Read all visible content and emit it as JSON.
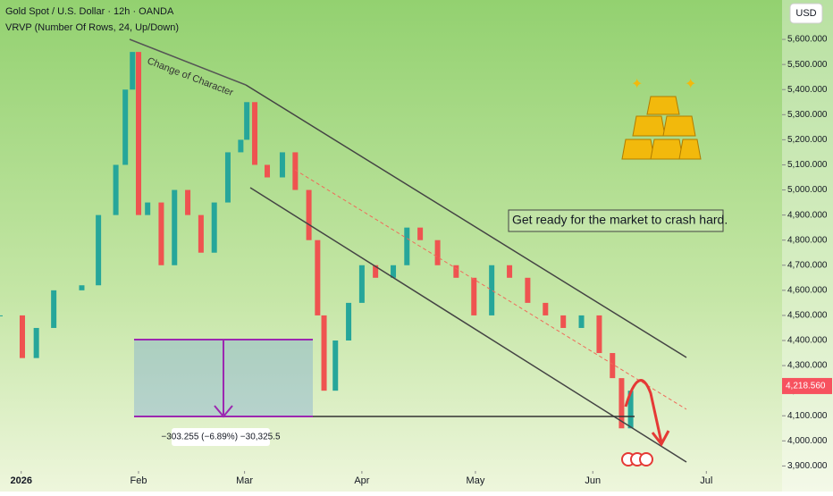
{
  "chart_data": {
    "type": "candlestick",
    "title": "Gold Spot / U.S. Dollar · 12h · OANDA",
    "subtitle": "VRVP (Number Of Rows, 24, Up/Down)",
    "currency": "USD",
    "annotations": [
      "Change of Character",
      "Get ready for the market to crash hard.",
      "−303.255 (−6.89%) −30,325.5"
    ],
    "x": [
      -4.6,
      1.3,
      5,
      9.6,
      17,
      21.4,
      26,
      28.5,
      30.4,
      32,
      34.4,
      38,
      41.5,
      45,
      48.5,
      52,
      55.6,
      59,
      60.6,
      62.7,
      66,
      70,
      73.4,
      77,
      79.3,
      81,
      84,
      87.5,
      91,
      94.6,
      99.3,
      102.9,
      106.4,
      111,
      115.9,
      120.6,
      125.3,
      130,
      134.8,
      139.5,
      144.2,
      149,
      153.7,
      157.2,
      159.6,
      162
    ],
    "values": [
      4500,
      4330,
      4450,
      4600,
      4620,
      4900,
      5100,
      5400,
      5550,
      4900,
      4950,
      4700,
      5000,
      4900,
      4750,
      4950,
      5150,
      5200,
      5350,
      5100,
      5050,
      5150,
      5000,
      4800,
      4500,
      4200,
      4400,
      4550,
      4700,
      4650,
      4700,
      4850,
      4800,
      4700,
      4650,
      4500,
      4700,
      4650,
      4550,
      4500,
      4450,
      4500,
      4350,
      4250,
      4050,
      4200
    ],
    "up_color": "#26a69a",
    "down_color": "#ef5350",
    "xlim": [
      -4.6,
      202
    ],
    "xticks": [
      {
        "value": 1,
        "label": "2026"
      },
      {
        "value": 32,
        "label": "Feb"
      },
      {
        "value": 60,
        "label": "Mar"
      },
      {
        "value": 91,
        "label": "Apr"
      },
      {
        "value": 121,
        "label": "May"
      },
      {
        "value": 152,
        "label": "Jun"
      },
      {
        "value": 182,
        "label": "Jul"
      }
    ],
    "ylim": [
      3880,
      5757
    ],
    "yticks": [
      {
        "value": 5600,
        "label": "5,600.000"
      },
      {
        "value": 5500,
        "label": "5,500.000"
      },
      {
        "value": 5400,
        "label": "5,400.000"
      },
      {
        "value": 5300,
        "label": "5,300.000"
      },
      {
        "value": 5200,
        "label": "5,200.000"
      },
      {
        "value": 5100,
        "label": "5,100.000"
      },
      {
        "value": 5000,
        "label": "5,000.000"
      },
      {
        "value": 4900,
        "label": "4,900.000"
      },
      {
        "value": 4800,
        "label": "4,800.000"
      },
      {
        "value": 4700,
        "label": "4,700.000"
      },
      {
        "value": 4600,
        "label": "4,600.000"
      },
      {
        "value": 4500,
        "label": "4,500.000"
      },
      {
        "value": 4400,
        "label": "4,400.000"
      },
      {
        "value": 4300,
        "label": "4,300.000"
      },
      {
        "value": 4200,
        "label": "4,200.000"
      },
      {
        "value": 4100,
        "label": "4,100.000"
      },
      {
        "value": 4000,
        "label": "4,000.000"
      },
      {
        "value": 3900,
        "label": "3,900.000"
      }
    ],
    "last_price": {
      "value": 4218.56,
      "label": "4,218.560"
    },
    "last_price_color": "#f7525f"
  }
}
